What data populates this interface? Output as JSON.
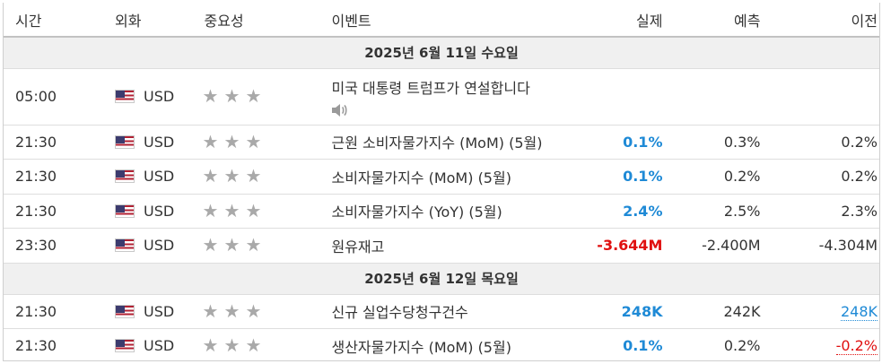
{
  "header": {
    "time": "시간",
    "currency": "외화",
    "importance": "중요성",
    "event": "이벤트",
    "actual": "실제",
    "forecast": "예측",
    "previous": "이전"
  },
  "days": [
    {
      "label": "2025년 6월 11일 수요일",
      "events": [
        {
          "time": "05:00",
          "currency": "USD",
          "importance": 3,
          "title": "미국 대통령 트럼프가 연설합니다",
          "has_audio": true,
          "actual": "",
          "actual_style": "",
          "forecast": "",
          "previous": "",
          "previous_style": ""
        },
        {
          "time": "21:30",
          "currency": "USD",
          "importance": 3,
          "title": "근원 소비자물가지수 (MoM) (5월)",
          "actual": "0.1%",
          "actual_style": "pos",
          "forecast": "0.3%",
          "previous": "0.2%",
          "previous_style": ""
        },
        {
          "time": "21:30",
          "currency": "USD",
          "importance": 3,
          "title": "소비자물가지수 (MoM) (5월)",
          "actual": "0.1%",
          "actual_style": "pos",
          "forecast": "0.2%",
          "previous": "0.2%",
          "previous_style": ""
        },
        {
          "time": "21:30",
          "currency": "USD",
          "importance": 3,
          "title": "소비자물가지수 (YoY) (5월)",
          "actual": "2.4%",
          "actual_style": "pos",
          "forecast": "2.5%",
          "previous": "2.3%",
          "previous_style": ""
        },
        {
          "time": "23:30",
          "currency": "USD",
          "importance": 3,
          "title": "원유재고",
          "actual": "-3.644M",
          "actual_style": "neg",
          "forecast": "-2.400M",
          "previous": "-4.304M",
          "previous_style": ""
        }
      ]
    },
    {
      "label": "2025년 6월 12일 목요일",
      "events": [
        {
          "time": "21:30",
          "currency": "USD",
          "importance": 3,
          "title": "신규 실업수당청구건수",
          "actual": "248K",
          "actual_style": "pos",
          "forecast": "242K",
          "previous": "248K",
          "previous_style": "link-blue"
        },
        {
          "time": "21:30",
          "currency": "USD",
          "importance": 3,
          "title": "생산자물가지수 (MoM) (5월)",
          "actual": "0.1%",
          "actual_style": "pos",
          "forecast": "0.2%",
          "previous": "-0.2%",
          "previous_style": "link-red"
        }
      ]
    }
  ],
  "icons": {
    "flag": "us-flag-icon",
    "star": "star-icon",
    "audio": "speaker-icon"
  },
  "colors": {
    "positive": "#1f8ad6",
    "negative": "#e01010",
    "star": "#a9a9a9",
    "day_bg": "#f0f0f0"
  }
}
